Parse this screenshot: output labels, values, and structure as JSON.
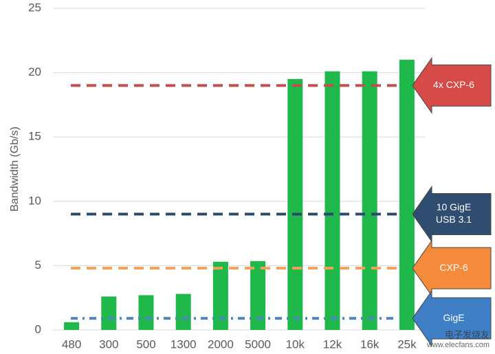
{
  "chart_data": {
    "type": "bar",
    "y_label": "Bandwidth (Gb/s)",
    "categories": [
      "480",
      "300",
      "500",
      "1300",
      "2000",
      "5000",
      "10k",
      "12k",
      "16k",
      "25k"
    ],
    "values": [
      0.6,
      2.6,
      2.7,
      2.8,
      5.3,
      5.35,
      19.5,
      20.1,
      20.1,
      21.0
    ],
    "color": "#1fb84b",
    "ylim": [
      0,
      25
    ],
    "yticks": [
      0,
      5,
      10,
      15,
      20,
      25
    ],
    "grid": true,
    "reference_lines": [
      {
        "label": [
          "4x CXP-6"
        ],
        "value": 19.0,
        "color": "#c0504d",
        "arrow_color": "#d64b47",
        "style": "dash"
      },
      {
        "label": [
          "10 GigE",
          "USB 3.1"
        ],
        "value": 9.0,
        "color": "#2c4a6a",
        "arrow_color": "#2e4d70",
        "style": "dash"
      },
      {
        "label": [
          "CXP-6"
        ],
        "value": 4.8,
        "color": "#f2a05a",
        "arrow_color": "#f58a3a",
        "style": "dash"
      },
      {
        "label": [
          "GigE"
        ],
        "value": 0.9,
        "color": "#4a86c0",
        "arrow_color": "#3f7fc6",
        "style": "dashdot"
      }
    ],
    "watermark": [
      "电子发烧友",
      "www.elecfans.com"
    ]
  }
}
